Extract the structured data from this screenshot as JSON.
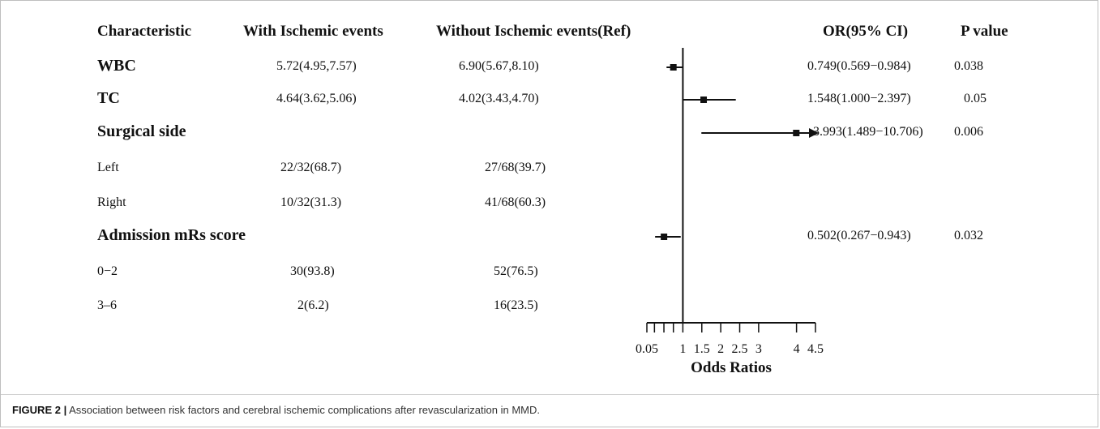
{
  "headers": {
    "characteristic": "Characteristic",
    "with": "With Ischemic events",
    "without": "Without Ischemic events(Ref)",
    "or": "OR(95% CI)",
    "p": "P value"
  },
  "rows": [
    {
      "label": "WBC",
      "with": "5.72(4.95,7.57)",
      "without": "6.90(5.67,8.10)",
      "or": "0.749(0.569−0.984)",
      "p": "0.038"
    },
    {
      "label": "TC",
      "with": "4.64(3.62,5.06)",
      "without": "4.02(3.43,4.70)",
      "or": "1.548(1.000−2.397)",
      "p": "0.05"
    },
    {
      "label": "Surgical side",
      "with": "",
      "without": "",
      "or": "3.993(1.489−10.706)",
      "p": "0.006"
    },
    {
      "label": "Left",
      "with": "22/32(68.7)",
      "without": "27/68(39.7)",
      "or": "",
      "p": ""
    },
    {
      "label": "Right",
      "with": "10/32(31.3)",
      "without": "41/68(60.3)",
      "or": "",
      "p": ""
    },
    {
      "label": "Admission mRs score",
      "with": "",
      "without": "",
      "or": "0.502(0.267−0.943)",
      "p": "0.032"
    },
    {
      "label": "0−2",
      "with": "30(93.8)",
      "without": "52(76.5)",
      "or": "",
      "p": ""
    },
    {
      "label": "3–6",
      "with": "2(6.2)",
      "without": "16(23.5)",
      "or": "",
      "p": ""
    }
  ],
  "chart_data": {
    "type": "forest",
    "xlabel": "Odds Ratios",
    "reference_line": 1,
    "x_ticks": [
      0.05,
      1,
      1.5,
      2,
      2.5,
      3,
      4,
      4.5
    ],
    "minor_ticks": [
      0.25,
      0.5,
      0.75
    ],
    "xlim": [
      0.05,
      4.5
    ],
    "estimates": [
      {
        "label": "WBC",
        "or": 0.749,
        "lower": 0.569,
        "upper": 0.984
      },
      {
        "label": "TC",
        "or": 1.548,
        "lower": 1.0,
        "upper": 2.397
      },
      {
        "label": "Surgical side",
        "or": 3.993,
        "lower": 1.489,
        "upper": 10.706,
        "arrow": true
      },
      {
        "label": "Admission mRs score",
        "or": 0.502,
        "lower": 0.267,
        "upper": 0.943
      }
    ]
  },
  "caption": {
    "prefix": "FIGURE 2 |",
    "text": " Association between risk factors and cerebral ischemic complications after revascularization in MMD."
  }
}
